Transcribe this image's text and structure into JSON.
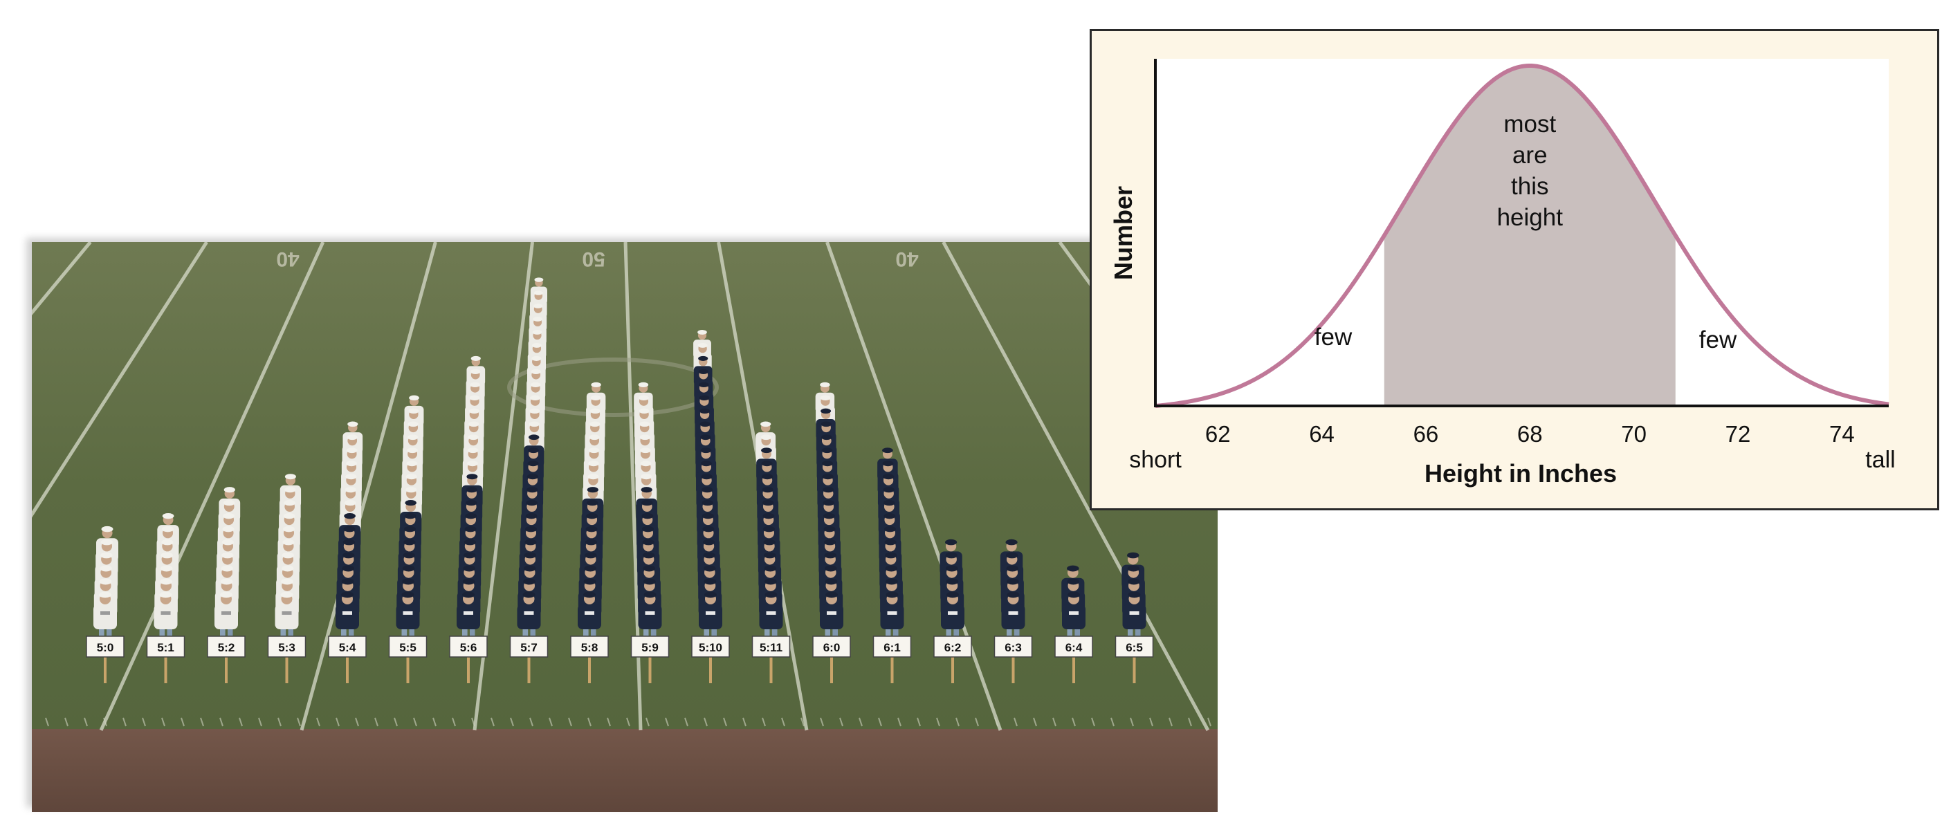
{
  "photo": {
    "yard_numbers": [
      "40",
      "50",
      "40"
    ],
    "groups": [
      {
        "label": "5:0",
        "count": 6,
        "shirt": "white"
      },
      {
        "label": "5:1",
        "count": 7,
        "shirt": "white"
      },
      {
        "label": "5:2",
        "count": 9,
        "shirt": "white"
      },
      {
        "label": "5:3",
        "count": 10,
        "shirt": "white"
      },
      {
        "label": "5:4",
        "count": 14,
        "shirt": "mixed"
      },
      {
        "label": "5:5",
        "count": 16,
        "shirt": "mixed"
      },
      {
        "label": "5:6",
        "count": 19,
        "shirt": "mixed"
      },
      {
        "label": "5:7",
        "count": 25,
        "shirt": "mixed"
      },
      {
        "label": "5:8",
        "count": 17,
        "shirt": "mixed"
      },
      {
        "label": "5:9",
        "count": 17,
        "shirt": "mixed"
      },
      {
        "label": "5:10",
        "count": 21,
        "shirt": "mixed"
      },
      {
        "label": "5:11",
        "count": 14,
        "shirt": "mixed"
      },
      {
        "label": "6:0",
        "count": 17,
        "shirt": "mixed"
      },
      {
        "label": "6:1",
        "count": 12,
        "shirt": "navy"
      },
      {
        "label": "6:2",
        "count": 5,
        "shirt": "navy"
      },
      {
        "label": "6:3",
        "count": 5,
        "shirt": "navy"
      },
      {
        "label": "6:4",
        "count": 3,
        "shirt": "navy"
      },
      {
        "label": "6:5",
        "count": 4,
        "shirt": "navy"
      }
    ]
  },
  "chart_data": {
    "type": "area",
    "title": "",
    "xlabel": "Height in Inches",
    "ylabel": "Number",
    "xlim": [
      60.8,
      74.9
    ],
    "ylim": [
      0,
      1
    ],
    "x_ticks": [
      62,
      64,
      66,
      68,
      70,
      72,
      74
    ],
    "x_end_labels": {
      "left": "short",
      "right": "tall"
    },
    "distribution": {
      "kind": "normal",
      "mean": 68,
      "sd": 2.4
    },
    "shaded_range": [
      65.2,
      70.8
    ],
    "annotations": {
      "center": [
        "most",
        "are",
        "this",
        "height"
      ],
      "left": "few",
      "right": "few"
    },
    "colors": {
      "curve": "#c07898",
      "shade": "#c9bfbe",
      "panel": "#fdf6e6",
      "plot": "#ffffff"
    },
    "grid": false,
    "legend": "none"
  }
}
